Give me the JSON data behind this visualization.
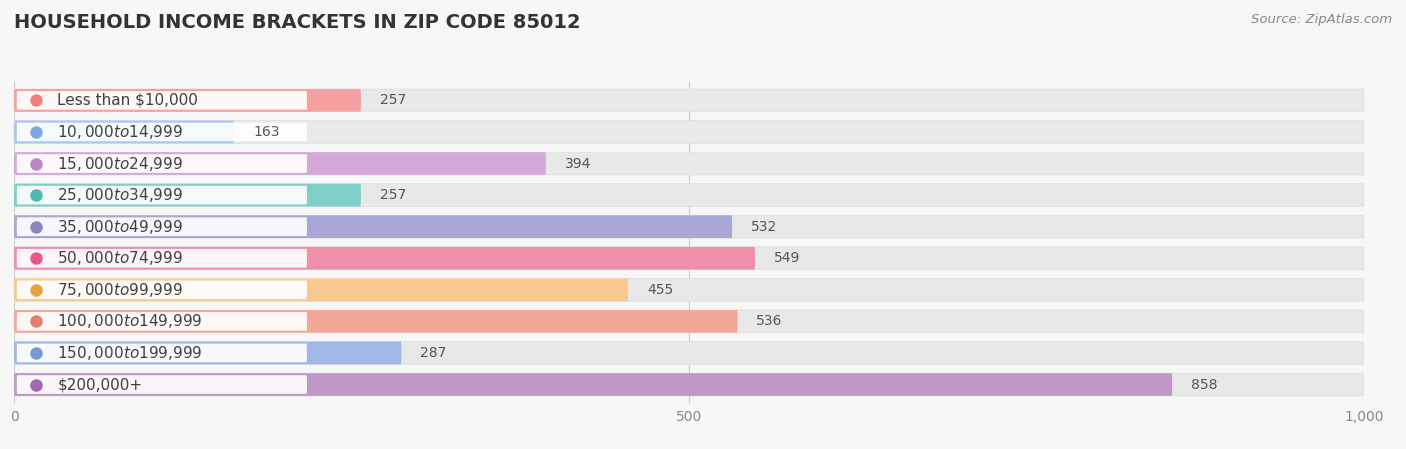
{
  "title": "HOUSEHOLD INCOME BRACKETS IN ZIP CODE 85012",
  "source": "Source: ZipAtlas.com",
  "categories": [
    "Less than $10,000",
    "$10,000 to $14,999",
    "$15,000 to $24,999",
    "$25,000 to $34,999",
    "$35,000 to $49,999",
    "$50,000 to $74,999",
    "$75,000 to $99,999",
    "$100,000 to $149,999",
    "$150,000 to $199,999",
    "$200,000+"
  ],
  "values": [
    257,
    163,
    394,
    257,
    532,
    549,
    455,
    536,
    287,
    858
  ],
  "bar_colors": [
    "#F4A0A0",
    "#A8C8F0",
    "#D4A8D8",
    "#80CEC8",
    "#A8A8D8",
    "#F090A8",
    "#F8C890",
    "#F0A898",
    "#A0B8E8",
    "#C098C8"
  ],
  "dot_colors": [
    "#F08080",
    "#80A8E0",
    "#B888C0",
    "#50B8B0",
    "#8888C0",
    "#E85888",
    "#E8A040",
    "#E08070",
    "#7898D0",
    "#A068B0"
  ],
  "bg_color": "#f7f7f7",
  "bar_bg_color": "#e8e8e8",
  "bar_bg_border": "#dddddd",
  "xlim": [
    0,
    1000
  ],
  "xticks": [
    0,
    500,
    1000
  ],
  "title_fontsize": 14,
  "label_fontsize": 11,
  "value_fontsize": 10,
  "source_fontsize": 9.5,
  "tick_fontsize": 10
}
